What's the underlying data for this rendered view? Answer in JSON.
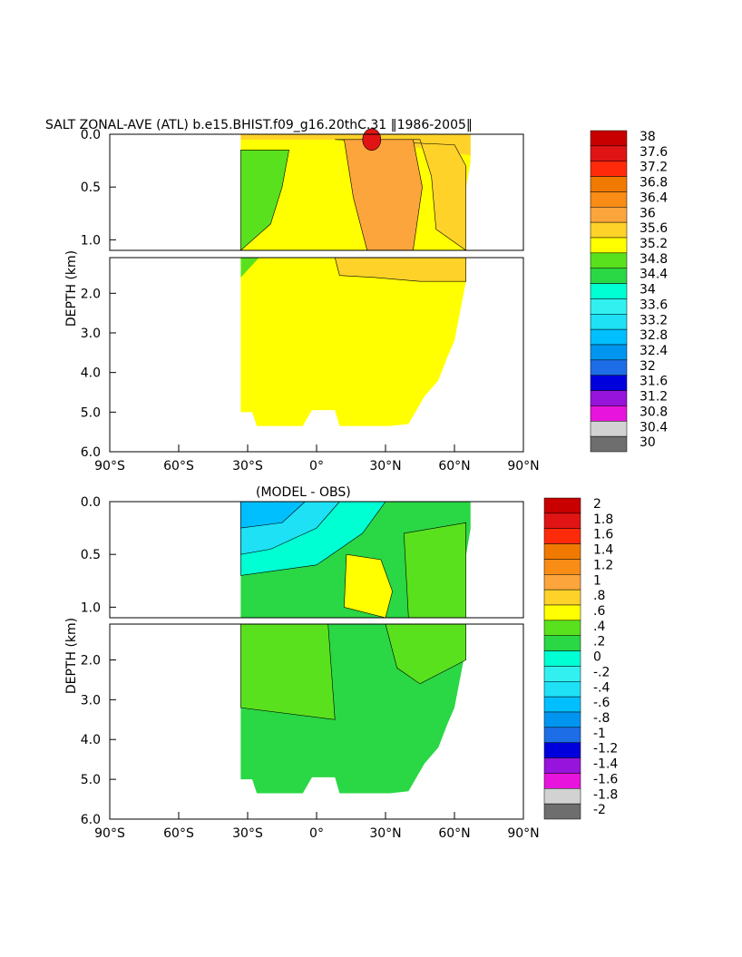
{
  "chart_data": [
    {
      "type": "heatmap",
      "title": "SALT ZONAL-AVE (ATL) b.e15.BHIST.f09_g16.20thC.31 ‖1986-2005‖",
      "ylabel": "DEPTH (km)",
      "xlim": [
        -90,
        90
      ],
      "x_ticks": [
        "90°S",
        "60°S",
        "30°S",
        "0°",
        "30°N",
        "60°N",
        "90°N"
      ],
      "y_ticks_upper": [
        "0.0",
        "0.5",
        "1.0"
      ],
      "y_ticks_lower": [
        "2.0",
        "3.0",
        "4.0",
        "5.0",
        "6.0"
      ],
      "upper_ylim": [
        0,
        1.1
      ],
      "lower_ylim": [
        1.1,
        6.0
      ],
      "colorbar_levels": [
        "38",
        "37.6",
        "37.2",
        "36.8",
        "36.4",
        "36",
        "35.6",
        "35.2",
        "34.8",
        "34.4",
        "34",
        "33.6",
        "33.2",
        "32.8",
        "32.4",
        "32",
        "31.6",
        "31.2",
        "30.8",
        "30.4",
        "30"
      ],
      "colors": [
        "#c80000",
        "#e01414",
        "#ff2a0a",
        "#f07a00",
        "#f88c14",
        "#fca53c",
        "#ffd22a",
        "#ffff00",
        "#5ae11e",
        "#2ad745",
        "#00ffd2",
        "#32f0f0",
        "#1ee1f5",
        "#00bfff",
        "#0096f0",
        "#1d6ee6",
        "#0000dc",
        "#9614dc",
        "#e614dc",
        "#d2d2d2",
        "#6e6e6e"
      ],
      "field_colors": {
        "fresh": "#5ae11e",
        "mid": "#ffff00",
        "salty": "#ffd22a",
        "saltier": "#fca53c",
        "max": "#e01414"
      }
    },
    {
      "type": "heatmap",
      "title": "(MODEL - OBS)",
      "ylabel": "DEPTH (km)",
      "xlim": [
        -90,
        90
      ],
      "x_ticks": [
        "90°S",
        "60°S",
        "30°S",
        "0°",
        "30°N",
        "60°N",
        "90°N"
      ],
      "y_ticks_upper": [
        "0.0",
        "0.5",
        "1.0"
      ],
      "y_ticks_lower": [
        "2.0",
        "3.0",
        "4.0",
        "5.0",
        "6.0"
      ],
      "upper_ylim": [
        0,
        1.1
      ],
      "lower_ylim": [
        1.1,
        6.0
      ],
      "colorbar_levels": [
        "2",
        "1.8",
        "1.6",
        "1.4",
        "1.2",
        "1",
        ".8",
        ".6",
        ".4",
        ".2",
        "0",
        "-.2",
        "-.4",
        "-.6",
        "-.8",
        "-1",
        "-1.2",
        "-1.4",
        "-1.6",
        "-1.8",
        "-2"
      ],
      "colors": [
        "#c80000",
        "#e01414",
        "#ff2a0a",
        "#f07a00",
        "#f88c14",
        "#fca53c",
        "#ffd22a",
        "#ffff00",
        "#5ae11e",
        "#2ad745",
        "#00ffd2",
        "#32f0f0",
        "#1ee1f5",
        "#00bfff",
        "#0096f0",
        "#1d6ee6",
        "#0000dc",
        "#9614dc",
        "#e614dc",
        "#d2d2d2",
        "#6e6e6e"
      ],
      "field_colors": {
        "base": "#2ad745",
        "light": "#5ae11e",
        "pos": "#ffff00",
        "neg1": "#00ffd2",
        "neg2": "#1ee1f5",
        "neg3": "#00bfff"
      }
    }
  ]
}
